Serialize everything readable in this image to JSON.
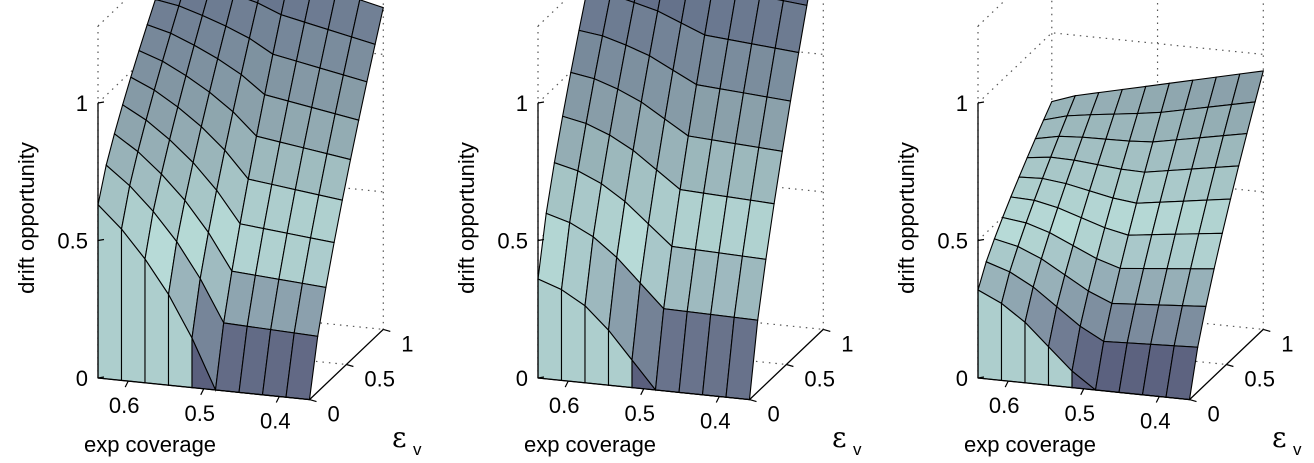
{
  "chart_data": [
    {
      "type": "surface",
      "xlabel": "exp coverage",
      "ylabel": "ε",
      "ylabel_sub": "v",
      "zlabel": "drift opportunity",
      "x_ticks": [
        "0.6",
        "0.5",
        "0.4"
      ],
      "y_ticks": [
        "0",
        "0.5",
        "1"
      ],
      "z_ticks": [
        "0",
        "0.5",
        "1"
      ],
      "xlim": [
        0.36,
        0.64
      ],
      "ylim": [
        0,
        1
      ],
      "zlim": [
        0,
        1
      ],
      "grid": "dotted box",
      "coverage": [
        0.64,
        0.61,
        0.58,
        0.55,
        0.52,
        0.49,
        0.46,
        0.43,
        0.4,
        0.37
      ],
      "epsilon_v": [
        0.0,
        0.11,
        0.22,
        0.33,
        0.44,
        0.56,
        0.67,
        0.78,
        0.89,
        1.0
      ],
      "front_profile_eps0": [
        0.63,
        0.55,
        0.45,
        0.33,
        0.18,
        0.0,
        0.0,
        0.0,
        0.0,
        0.0
      ],
      "back_profile_eps1": [
        1.3,
        1.3,
        1.29,
        1.28,
        1.27,
        1.25,
        1.23,
        1.21,
        1.19,
        1.17
      ]
    },
    {
      "type": "surface",
      "xlabel": "exp coverage",
      "ylabel": "ε",
      "ylabel_sub": "v",
      "zlabel": "drift opportunity",
      "x_ticks": [
        "0.6",
        "0.5",
        "0.4"
      ],
      "y_ticks": [
        "0",
        "0.5",
        "1"
      ],
      "z_ticks": [
        "0",
        "0.5",
        "1"
      ],
      "xlim": [
        0.36,
        0.64
      ],
      "ylim": [
        0,
        1
      ],
      "zlim": [
        0,
        1
      ],
      "grid": "dotted box",
      "coverage": [
        0.64,
        0.61,
        0.58,
        0.55,
        0.52,
        0.49,
        0.46,
        0.43,
        0.4,
        0.37
      ],
      "epsilon_v": [
        0.0,
        0.11,
        0.22,
        0.33,
        0.44,
        0.56,
        0.67,
        0.78,
        0.89,
        1.0
      ],
      "front_profile_eps0": [
        0.36,
        0.33,
        0.28,
        0.2,
        0.1,
        0.0,
        0.0,
        0.0,
        0.0,
        0.0
      ],
      "back_profile_eps1": [
        1.58,
        1.58,
        1.57,
        1.57,
        1.56,
        1.55,
        1.54,
        1.53,
        1.52,
        1.51
      ]
    },
    {
      "type": "surface",
      "xlabel": "exp coverage",
      "ylabel": "ε",
      "ylabel_sub": "v",
      "zlabel": "drift opportunity",
      "x_ticks": [
        "0.6",
        "0.5",
        "0.4"
      ],
      "y_ticks": [
        "0",
        "0.5",
        "1"
      ],
      "z_ticks": [
        "0",
        "0.5",
        "1"
      ],
      "xlim": [
        0.36,
        0.64
      ],
      "ylim": [
        0,
        1
      ],
      "zlim": [
        0,
        1
      ],
      "grid": "dotted box",
      "coverage": [
        0.64,
        0.61,
        0.58,
        0.55,
        0.52,
        0.49,
        0.46,
        0.43,
        0.4,
        0.37
      ],
      "epsilon_v": [
        0.0,
        0.11,
        0.22,
        0.33,
        0.44,
        0.56,
        0.67,
        0.78,
        0.89,
        1.0
      ],
      "front_profile_eps0": [
        0.32,
        0.28,
        0.22,
        0.14,
        0.06,
        0.0,
        0.0,
        0.0,
        0.0,
        0.0
      ],
      "back_profile_eps1": [
        0.75,
        0.78,
        0.8,
        0.82,
        0.84,
        0.86,
        0.88,
        0.9,
        0.92,
        0.94
      ]
    }
  ],
  "colors": {
    "low": "#4a4a6e",
    "mid": "#8aa0aa",
    "high": "#b8dcd8",
    "top": "#5a6482",
    "edge": "#000000",
    "grid": "#555555"
  }
}
